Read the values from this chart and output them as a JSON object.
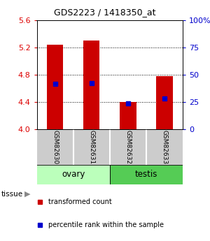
{
  "title": "GDS2223 / 1418350_at",
  "samples": [
    "GSM82630",
    "GSM82631",
    "GSM82632",
    "GSM82633"
  ],
  "red_values": [
    5.24,
    5.31,
    4.4,
    4.78
  ],
  "blue_values": [
    4.67,
    4.68,
    4.38,
    4.45
  ],
  "ymin": 4.0,
  "ymax": 5.6,
  "yticks_left": [
    4.0,
    4.4,
    4.8,
    5.2,
    5.6
  ],
  "yticks_right": [
    0,
    25,
    50,
    75,
    100
  ],
  "left_color": "#dd0000",
  "right_color": "#0000cc",
  "bar_color": "#cc0000",
  "dot_color": "#0000cc",
  "bar_width": 0.45,
  "ovary_color": "#bbffbb",
  "testis_color": "#55cc55",
  "sample_bg": "#cccccc",
  "legend_red": "transformed count",
  "legend_blue": "percentile rank within the sample"
}
